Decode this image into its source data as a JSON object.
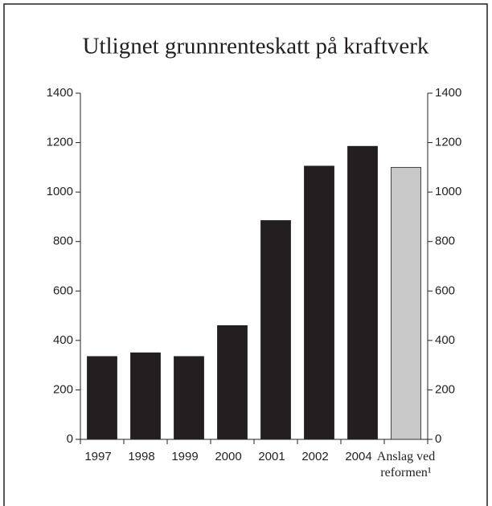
{
  "chart_data": {
    "type": "bar",
    "title": "Utlignet grunnrenteskatt på kraftverk",
    "categories": [
      "1997",
      "1998",
      "1999",
      "2000",
      "2001",
      "2002",
      "2004",
      "Anslag ved reformen¹"
    ],
    "values": [
      335,
      350,
      335,
      460,
      885,
      1105,
      1185,
      1100
    ],
    "colors": [
      "#231f20",
      "#231f20",
      "#231f20",
      "#231f20",
      "#231f20",
      "#231f20",
      "#231f20",
      "#c8c8c8"
    ],
    "ylim": [
      0,
      1400
    ],
    "yticks": [
      0,
      200,
      400,
      600,
      800,
      1000,
      1200,
      1400
    ],
    "y2lim": [
      0,
      1400
    ],
    "y2ticks": [
      0,
      200,
      400,
      600,
      800,
      1000,
      1200,
      1400
    ]
  }
}
